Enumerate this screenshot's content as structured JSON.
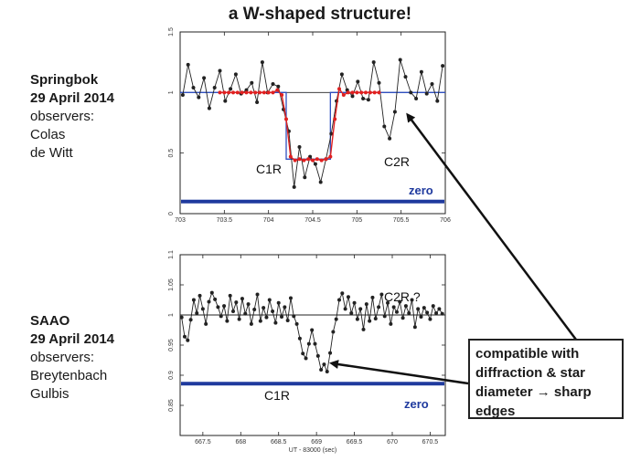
{
  "title": "a W-shaped structure!",
  "observation_1": {
    "site": "Springbok",
    "date": "29 April 2014",
    "observers_label": "observers:",
    "observers": [
      "Colas",
      "de Witt"
    ]
  },
  "observation_2": {
    "site": "SAAO",
    "date": "29 April 2014",
    "observers_label": "observers:",
    "observers": [
      "Breytenbach",
      "Gulbis"
    ]
  },
  "callout": {
    "line1": "compatible with",
    "line2": "diffraction & star",
    "line3": "diameter → sharp",
    "line4": "edges"
  },
  "colors": {
    "data": "#222222",
    "model": "#e02020",
    "square_model": "#3050c0",
    "zero": "#1f3a9e"
  },
  "chart_data": [
    {
      "type": "line",
      "title": "",
      "xlabel": "",
      "ylabel": "",
      "xlim": [
        703,
        706
      ],
      "ylim": [
        0,
        1.5
      ],
      "xticks": [
        "703",
        "703.5",
        "704",
        "704.5",
        "705",
        "705.5",
        "706"
      ],
      "yticks": [
        "0",
        "0.5",
        "1",
        "1.5"
      ],
      "x": [
        703.03,
        703.09,
        703.15,
        703.21,
        703.27,
        703.33,
        703.39,
        703.45,
        703.51,
        703.57,
        703.63,
        703.69,
        703.75,
        703.81,
        703.87,
        703.93,
        703.99,
        704.05,
        704.11,
        704.17,
        704.23,
        704.29,
        704.35,
        704.41,
        704.47,
        704.53,
        704.59,
        704.65,
        704.71,
        704.77,
        704.83,
        704.89,
        704.95,
        705.01,
        705.07,
        705.13,
        705.19,
        705.25,
        705.31,
        705.37,
        705.43,
        705.49,
        705.55,
        705.61,
        705.67,
        705.73,
        705.79,
        705.85,
        705.91,
        705.97
      ],
      "series": [
        {
          "values": [
            0.98,
            1.23,
            1.04,
            0.96,
            1.12,
            0.87,
            1.04,
            1.18,
            0.93,
            1.03,
            1.15,
            0.99,
            1.02,
            1.08,
            0.92,
            1.25,
            1.0,
            1.07,
            1.05,
            0.86,
            0.68,
            0.22,
            0.55,
            0.3,
            0.47,
            0.41,
            0.26,
            0.45,
            0.66,
            0.93,
            1.15,
            1.02,
            0.97,
            1.09,
            0.95,
            0.94,
            1.25,
            1.08,
            0.72,
            0.62,
            0.84,
            1.27,
            1.13,
            1.0,
            0.95,
            1.17,
            0.99,
            1.07,
            0.93,
            1.22
          ]
        }
      ],
      "model_fit": {
        "x": [
          703.45,
          703.5,
          703.55,
          703.6,
          703.65,
          703.7,
          703.75,
          703.8,
          703.85,
          703.9,
          703.95,
          704.0,
          704.05,
          704.1,
          704.15,
          704.2,
          704.25,
          704.3,
          704.35,
          704.4,
          704.45,
          704.5,
          704.55,
          704.6,
          704.65,
          704.7,
          704.75,
          704.8,
          704.85,
          704.9,
          704.95,
          705.0,
          705.05,
          705.1,
          705.15,
          705.2,
          705.25
        ],
        "values": [
          1.0,
          1.0,
          1.0,
          1.0,
          1.0,
          1.0,
          1.0,
          1.0,
          1.0,
          1.0,
          1.0,
          1.0,
          1.0,
          1.02,
          0.98,
          0.78,
          0.47,
          0.44,
          0.45,
          0.44,
          0.45,
          0.44,
          0.45,
          0.44,
          0.45,
          0.47,
          0.78,
          1.03,
          0.98,
          1.0,
          1.0,
          1.0,
          1.0,
          1.0,
          1.0,
          1.0,
          1.0
        ]
      },
      "square_model": {
        "x": [
          703.0,
          704.2,
          704.2,
          704.7,
          704.7,
          706.0
        ],
        "values": [
          1.0,
          1.0,
          0.45,
          0.45,
          1.0,
          1.0
        ]
      },
      "reference_level": 1.0,
      "zero_level": 0.1,
      "annotations": [
        "C1R",
        "C2R",
        "zero"
      ]
    },
    {
      "type": "line",
      "title": "",
      "xlabel": "UT - 83000 (sec)",
      "ylabel": "",
      "xlim": [
        667.2,
        670.7
      ],
      "ylim": [
        0.8,
        1.1
      ],
      "xticks": [
        "667.5",
        "668",
        "668.5",
        "669",
        "669.5",
        "670",
        "670.5"
      ],
      "yticks": [
        "0.85",
        "0.9",
        "0.95",
        "1",
        "1.05",
        "1.1"
      ],
      "x": [
        667.22,
        667.26,
        667.3,
        667.34,
        667.38,
        667.42,
        667.46,
        667.5,
        667.54,
        667.58,
        667.62,
        667.66,
        667.7,
        667.74,
        667.78,
        667.82,
        667.86,
        667.9,
        667.94,
        667.98,
        668.02,
        668.06,
        668.1,
        668.14,
        668.18,
        668.22,
        668.26,
        668.3,
        668.34,
        668.38,
        668.42,
        668.46,
        668.5,
        668.54,
        668.58,
        668.62,
        668.66,
        668.7,
        668.74,
        668.78,
        668.82,
        668.86,
        668.9,
        668.94,
        668.98,
        669.02,
        669.06,
        669.1,
        669.14,
        669.18,
        669.22,
        669.26,
        669.3,
        669.34,
        669.38,
        669.42,
        669.46,
        669.5,
        669.54,
        669.58,
        669.62,
        669.66,
        669.7,
        669.74,
        669.78,
        669.82,
        669.86,
        669.9,
        669.94,
        669.98,
        670.02,
        670.06,
        670.1,
        670.14,
        670.18,
        670.22,
        670.26,
        670.3,
        670.34,
        670.38,
        670.42,
        670.46,
        670.5,
        670.54,
        670.58,
        670.62,
        670.66
      ],
      "series": [
        {
          "values": [
            0.996,
            0.964,
            0.958,
            0.992,
            1.025,
            1.003,
            1.032,
            1.01,
            0.985,
            1.022,
            1.037,
            1.026,
            1.013,
            0.998,
            1.015,
            0.99,
            1.032,
            1.006,
            1.021,
            0.993,
            1.027,
            1.002,
            1.018,
            0.985,
            1.009,
            1.034,
            0.99,
            1.012,
            0.996,
            1.025,
            1.006,
            0.987,
            1.02,
            0.997,
            1.013,
            0.991,
            1.028,
            0.998,
            0.985,
            0.961,
            0.936,
            0.928,
            0.952,
            0.975,
            0.952,
            0.932,
            0.909,
            0.918,
            0.906,
            0.937,
            0.972,
            0.993,
            1.025,
            1.036,
            1.01,
            1.03,
            1.003,
            1.02,
            0.993,
            1.01,
            0.976,
            1.018,
            0.99,
            1.029,
            0.994,
            1.013,
            1.034,
            0.998,
            1.02,
            0.985,
            1.013,
            1.005,
            1.022,
            0.995,
            1.015,
            1.003,
            1.025,
            0.98,
            1.01,
            0.997,
            1.012,
            1.004,
            0.993,
            1.015,
            1.003,
            1.01,
            1.002
          ]
        }
      ],
      "reference_level": 1.0,
      "zero_level": 0.886,
      "annotations": [
        "C1R",
        "C2R ?",
        "zero"
      ]
    }
  ]
}
